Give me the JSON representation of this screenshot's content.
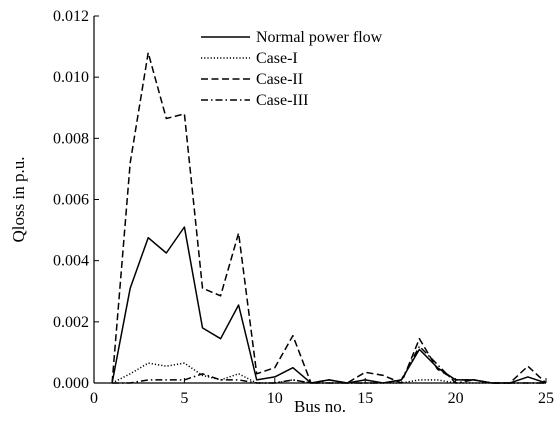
{
  "chart_data": {
    "type": "line",
    "title": "",
    "xlabel": "Bus no.",
    "ylabel": "Qloss in p.u.",
    "xlim": [
      0,
      25
    ],
    "ylim": [
      0,
      0.012
    ],
    "xticks": [
      "0",
      "5",
      "10",
      "15",
      "20",
      "25"
    ],
    "xtick_values": [
      0,
      5,
      10,
      15,
      20,
      25
    ],
    "yticks": [
      "0.000",
      "0.002",
      "0.004",
      "0.006",
      "0.008",
      "0.010",
      "0.012"
    ],
    "ytick_values": [
      0,
      0.002,
      0.004,
      0.006,
      0.008,
      0.01,
      0.012
    ],
    "grid": false,
    "legend_position": "top",
    "x": [
      1,
      2,
      3,
      4,
      5,
      6,
      7,
      8,
      9,
      10,
      11,
      12,
      13,
      14,
      15,
      16,
      17,
      18,
      19,
      20,
      21,
      22,
      23,
      24,
      25
    ],
    "series": [
      {
        "name": "Normal power flow",
        "style": "solid",
        "values": [
          0.0,
          0.0031,
          0.00475,
          0.00425,
          0.0051,
          0.0018,
          0.00145,
          0.00255,
          0.0001,
          0.0002,
          0.0005,
          0.0,
          0.0001,
          0.0,
          0.0001,
          0.0,
          0.0001,
          0.0011,
          0.0005,
          0.0001,
          0.0001,
          0.0,
          0.0,
          0.0002,
          0.0
        ]
      },
      {
        "name": "Case-I",
        "style": "dotted",
        "values": [
          0.0,
          0.0003,
          0.00065,
          0.00055,
          0.00065,
          0.00025,
          0.0001,
          0.0003,
          0.0,
          0.0,
          0.0001,
          0.0,
          0.0,
          0.0,
          0.0,
          0.0,
          0.0,
          0.0001,
          0.0001,
          0.0,
          0.0,
          0.0,
          0.0,
          0.0,
          0.0
        ]
      },
      {
        "name": "Case-II",
        "style": "dashed",
        "values": [
          0.0,
          0.0072,
          0.0108,
          0.00865,
          0.0088,
          0.0031,
          0.00285,
          0.0049,
          0.0003,
          0.0005,
          0.00155,
          0.0,
          0.0001,
          0.0,
          0.00035,
          0.00025,
          0.0,
          0.00145,
          0.00045,
          0.0001,
          0.0001,
          0.0,
          0.0,
          0.00055,
          0.0
        ]
      },
      {
        "name": "Case-III",
        "style": "dashdot",
        "values": [
          0.0,
          0.0,
          0.0001,
          0.0001,
          0.0001,
          0.0003,
          0.0001,
          0.0001,
          0.0,
          0.0,
          0.0001,
          0.0,
          0.0,
          0.0,
          0.0,
          0.0,
          0.0001,
          0.0012,
          0.0006,
          0.0,
          0.0001,
          0.0,
          0.0,
          0.0,
          0.0
        ]
      }
    ]
  }
}
